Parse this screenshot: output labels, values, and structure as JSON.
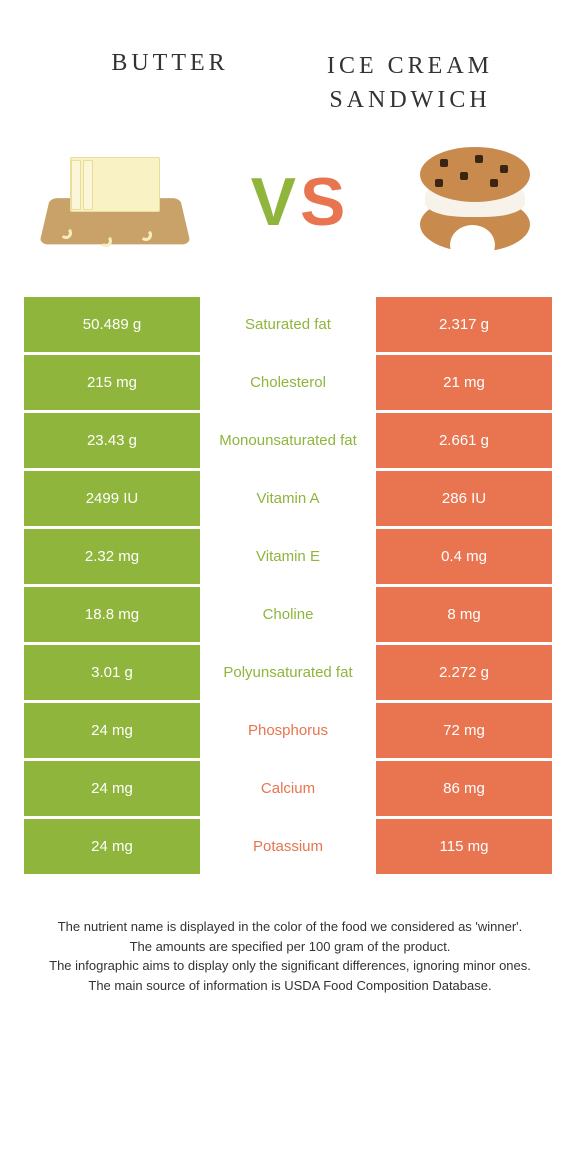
{
  "colors": {
    "green": "#8fb53c",
    "orange": "#e87450",
    "text": "#333333",
    "bg": "#ffffff"
  },
  "header": {
    "left": "BUTTER",
    "right_line1": "ICE CREAM",
    "right_line2": "SANDWICH"
  },
  "vs": {
    "v": "V",
    "s": "S"
  },
  "rows": [
    {
      "left": "50.489 g",
      "label": "Saturated fat",
      "right": "2.317 g",
      "winner": "left"
    },
    {
      "left": "215 mg",
      "label": "Cholesterol",
      "right": "21 mg",
      "winner": "left"
    },
    {
      "left": "23.43 g",
      "label": "Monounsaturated fat",
      "right": "2.661 g",
      "winner": "left"
    },
    {
      "left": "2499 IU",
      "label": "Vitamin A",
      "right": "286 IU",
      "winner": "left"
    },
    {
      "left": "2.32 mg",
      "label": "Vitamin E",
      "right": "0.4 mg",
      "winner": "left"
    },
    {
      "left": "18.8 mg",
      "label": "Choline",
      "right": "8 mg",
      "winner": "left"
    },
    {
      "left": "3.01 g",
      "label": "Polyunsaturated fat",
      "right": "2.272 g",
      "winner": "left"
    },
    {
      "left": "24 mg",
      "label": "Phosphorus",
      "right": "72 mg",
      "winner": "right"
    },
    {
      "left": "24 mg",
      "label": "Calcium",
      "right": "86 mg",
      "winner": "right"
    },
    {
      "left": "24 mg",
      "label": "Potassium",
      "right": "115 mg",
      "winner": "right"
    }
  ],
  "footnotes": [
    "The nutrient name is displayed in the color of the food we considered as 'winner'.",
    "The amounts are specified per 100 gram of the product.",
    "The infographic aims to display only the significant differences, ignoring minor ones.",
    "The main source of information is USDA Food Composition Database."
  ]
}
